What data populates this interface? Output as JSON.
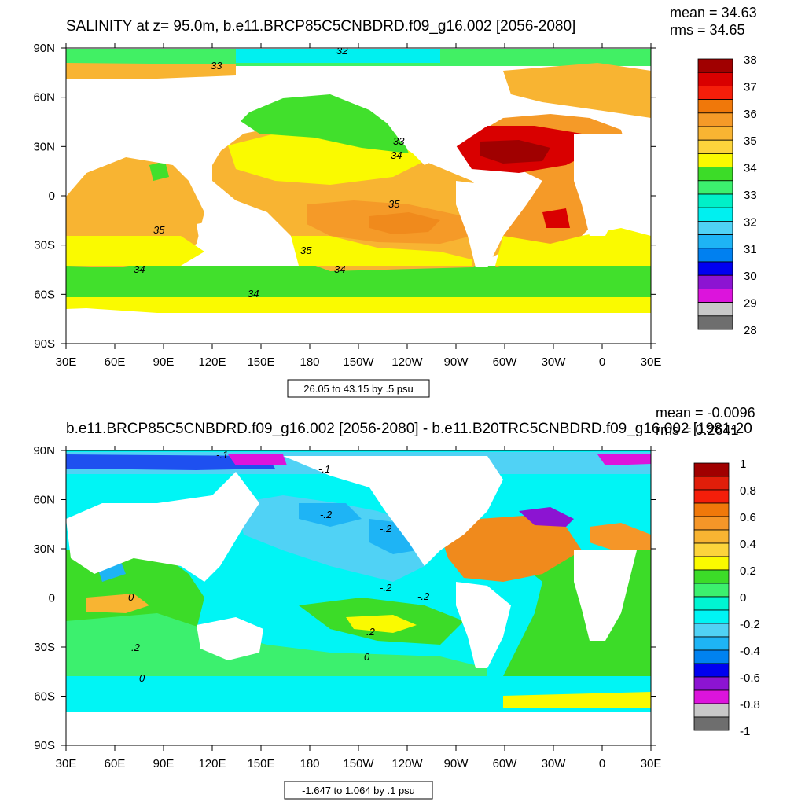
{
  "colors": {
    "ocean_red": "#d01010",
    "ocean_dark_red": "#a00000",
    "ocean_orange": "#f08a1c",
    "ocean_light_orange": "#f6b236",
    "ocean_gold": "#fbd23a",
    "ocean_yellow": "#fafa00",
    "ocean_green": "#3ee02c",
    "ocean_light_green": "#41f064",
    "ocean_cyan": "#00fadc",
    "ocean_light_cyan": "#66f0f5",
    "ocean_blue": "#0092f5",
    "land": "#ffffff"
  },
  "chart_data": [
    {
      "type": "contour",
      "title": "SALINITY at z=  95.0m, b.e11.BRCP85C5CNBDRD.f09_g16.002 [2056-2080]",
      "stats": [
        "mean = 34.63",
        "rms = 34.65"
      ],
      "x_ticks": [
        "30E",
        "60E",
        "90E",
        "120E",
        "150E",
        "180",
        "150W",
        "120W",
        "90W",
        "60W",
        "30W",
        "0",
        "30E"
      ],
      "y_ticks": [
        "90N",
        "60N",
        "30N",
        "0",
        "30S",
        "60S",
        "90S"
      ],
      "contour_info": "26.05 to 43.15 by .5 psu",
      "colorbar": {
        "levels": [
          "38",
          "37",
          "36",
          "35",
          "34",
          "33",
          "32",
          "31",
          "30",
          "29",
          "28"
        ],
        "colors": [
          "#a00000",
          "#d90000",
          "#f51e0a",
          "#f0780a",
          "#f59a28",
          "#f8b432",
          "#fcd43c",
          "#fafa00",
          "#3cdc28",
          "#3cf06e",
          "#00f0c8",
          "#00f0f0",
          "#50d2f5",
          "#1eb4f5",
          "#0080f0",
          "#0000f0",
          "#8c14d2",
          "#dc14dc",
          "#c8c8c8",
          "#6e6e6e"
        ]
      },
      "contour_labels": [
        "32",
        "33",
        "33",
        "34",
        "35",
        "35",
        "35",
        "34",
        "34",
        "34"
      ]
    },
    {
      "type": "contour",
      "title": "b.e11.BRCP85C5CNBDRD.f09_g16.002 [2056-2080] - b.e11.B20TRC5CNBDRD.f09_g16.002 [1981-20",
      "stats": [
        "mean = -0.0096",
        "rms = 0.2641"
      ],
      "x_ticks": [
        "30E",
        "60E",
        "90E",
        "120E",
        "150E",
        "180",
        "150W",
        "120W",
        "90W",
        "60W",
        "30W",
        "0",
        "30E"
      ],
      "y_ticks": [
        "90N",
        "60N",
        "30N",
        "0",
        "30S",
        "60S",
        "90S"
      ],
      "contour_info": "-1.647 to 1.064 by .1 psu",
      "colorbar": {
        "levels": [
          "1",
          "0.8",
          "0.6",
          "0.4",
          "0.2",
          "0",
          "-0.2",
          "-0.4",
          "-0.6",
          "-0.8",
          "-1"
        ],
        "colors": [
          "#a00000",
          "#e11e0a",
          "#f51e0a",
          "#f0780a",
          "#f59628",
          "#f8b432",
          "#fcd43c",
          "#fafa00",
          "#3cdc28",
          "#3cf06e",
          "#00f5d2",
          "#00f5f5",
          "#50d2f5",
          "#1eb4f5",
          "#0082f0",
          "#0000f0",
          "#8c14d2",
          "#dc14dc",
          "#c8c8c8",
          "#6e6e6e"
        ]
      },
      "contour_labels": [
        "-.1",
        "-.2",
        "-.2",
        "-.2",
        ".2",
        "0",
        "0",
        ".2",
        "-.2",
        "0",
        "-.1"
      ]
    }
  ]
}
